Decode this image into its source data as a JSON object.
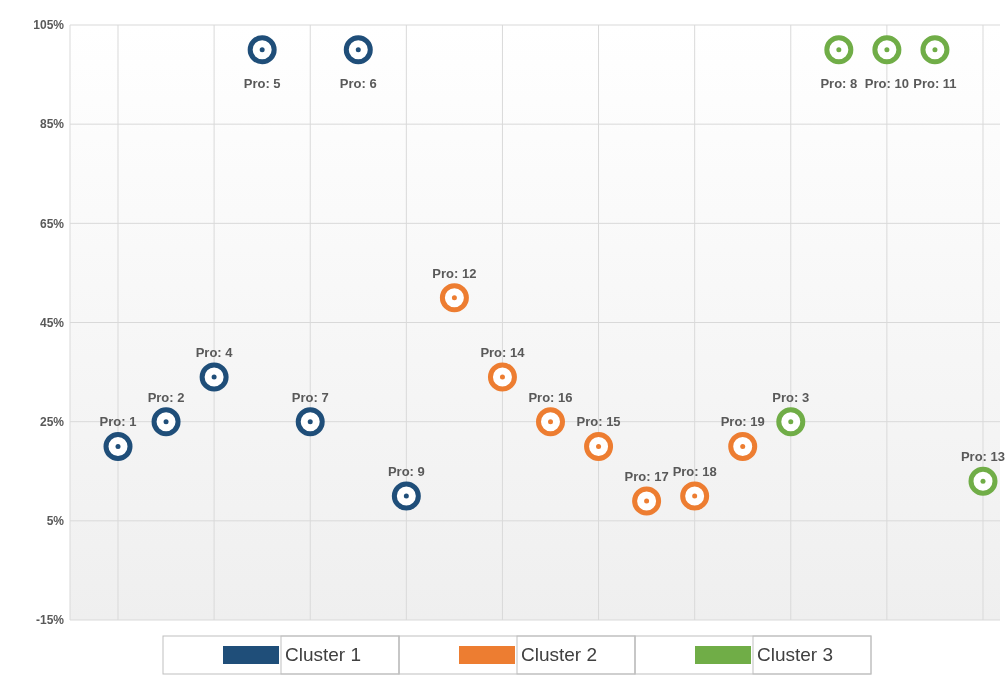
{
  "chart_data": {
    "type": "scatter",
    "categories": [
      "Pro: 1",
      "Pro: 2",
      "Pro: 4",
      "Pro: 5",
      "Pro: 7",
      "Pro: 6",
      "Pro: 9",
      "Pro: 12",
      "Pro: 14",
      "Pro: 16",
      "Pro: 15",
      "Pro: 17",
      "Pro: 18",
      "Pro: 19",
      "Pro: 3",
      "Pro: 8",
      "Pro: 10",
      "Pro: 11",
      "Pro: 13"
    ],
    "series": [
      {
        "name": "Cluster 1",
        "color": "#1f4e79",
        "values": [
          20,
          25,
          34,
          100,
          25,
          100,
          10,
          null,
          null,
          null,
          null,
          null,
          null,
          null,
          null,
          null,
          null,
          null,
          null
        ]
      },
      {
        "name": "Cluster 2",
        "color": "#ed7d31",
        "values": [
          null,
          null,
          null,
          null,
          null,
          null,
          null,
          50,
          34,
          25,
          20,
          9,
          10,
          20,
          null,
          null,
          null,
          null,
          null
        ]
      },
      {
        "name": "Cluster 3",
        "color": "#70ad47",
        "values": [
          null,
          null,
          null,
          null,
          null,
          null,
          null,
          null,
          null,
          null,
          null,
          null,
          null,
          null,
          25,
          100,
          100,
          100,
          13
        ]
      }
    ],
    "ylim": [
      -15,
      105
    ],
    "yticks": [
      {
        "value": -15,
        "label": "-15%"
      },
      {
        "value": 5,
        "label": "5%"
      },
      {
        "value": 25,
        "label": "25%"
      },
      {
        "value": 45,
        "label": "45%"
      },
      {
        "value": 65,
        "label": "65%"
      },
      {
        "value": 85,
        "label": "85%"
      },
      {
        "value": 105,
        "label": "105%"
      }
    ],
    "grid": true,
    "legend": "bottom",
    "marker": "circle"
  }
}
